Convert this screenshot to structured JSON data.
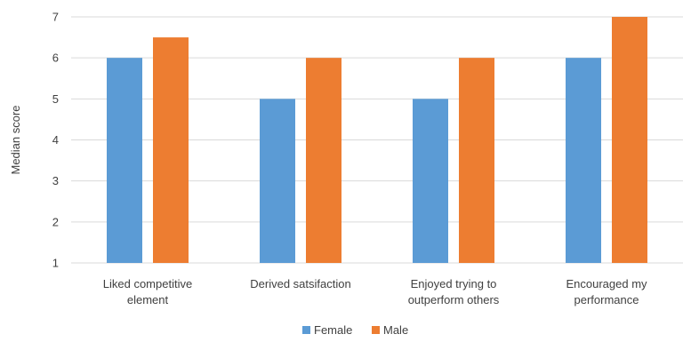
{
  "chart_data": {
    "type": "bar",
    "ylabel": "Median score",
    "xlabel": "",
    "ylim": [
      1,
      7
    ],
    "yticks": [
      1,
      2,
      3,
      4,
      5,
      6,
      7
    ],
    "grid": true,
    "legend_position": "bottom",
    "categories": [
      [
        "Liked competitive",
        "element"
      ],
      [
        "Derived satsifaction"
      ],
      [
        "Enjoyed trying to",
        "outperform others"
      ],
      [
        "Encouraged my",
        "performance"
      ]
    ],
    "series": [
      {
        "name": "Female",
        "color": "#5b9bd5",
        "values": [
          6,
          5,
          5,
          6
        ]
      },
      {
        "name": "Male",
        "color": "#ed7d31",
        "values": [
          6.5,
          6,
          6,
          7
        ]
      }
    ]
  }
}
